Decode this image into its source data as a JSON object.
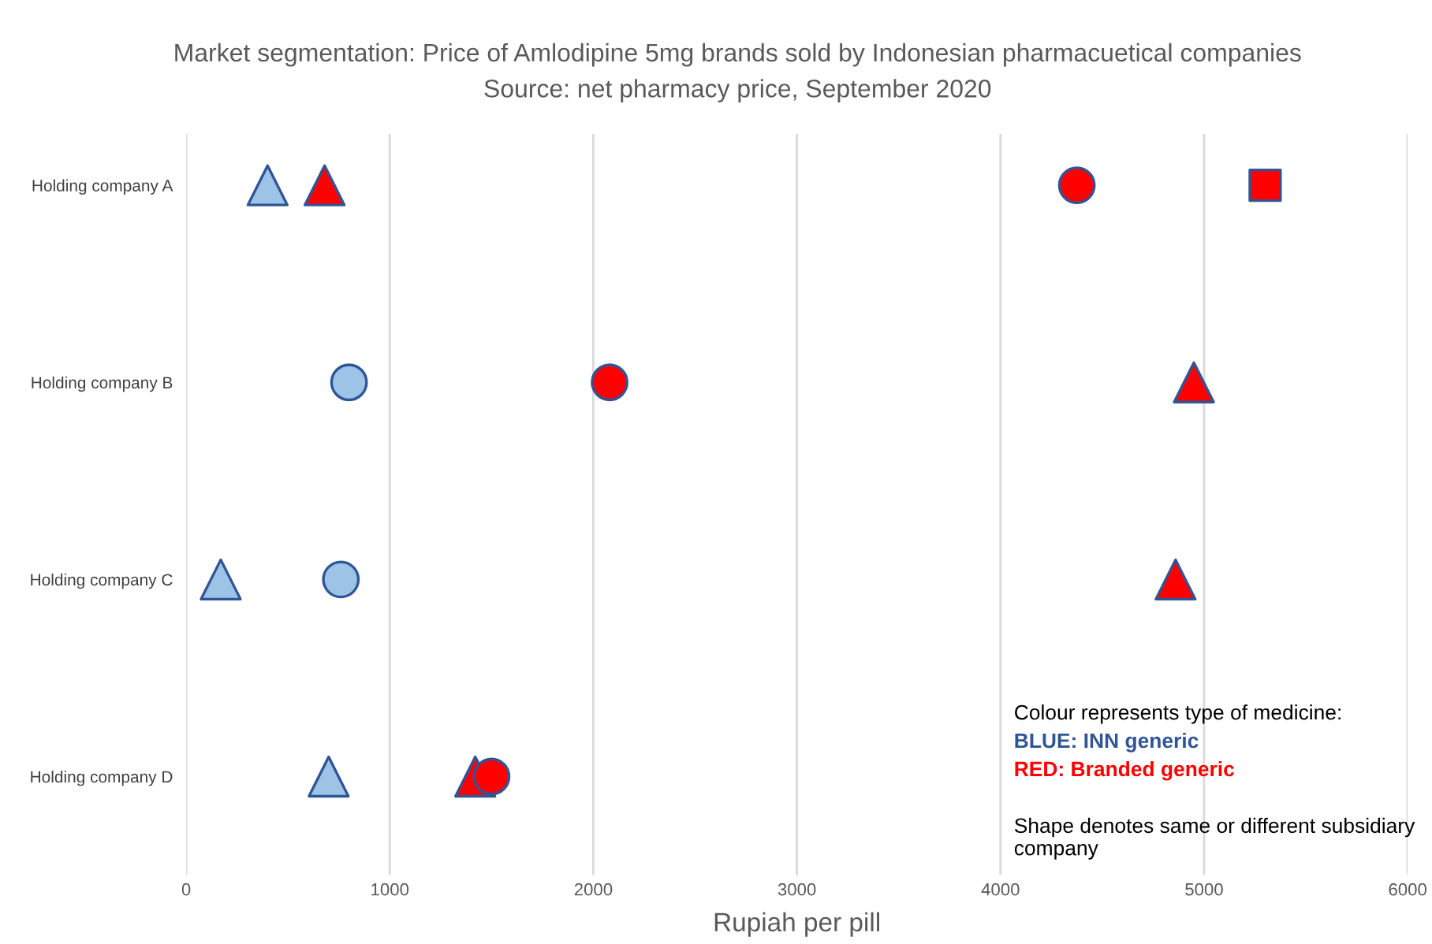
{
  "chart_data": {
    "type": "scatter",
    "orientation": "horizontal",
    "title": "Market segmentation: Price of Amlodipine 5mg brands sold by Indonesian pharmacuetical companies",
    "subtitle": "Source: net pharmacy price, September 2020",
    "xlabel": "Rupiah per pill",
    "categories": [
      "Holding company A",
      "Holding company B",
      "Holding company C",
      "Holding company D"
    ],
    "xlim": [
      0,
      6000
    ],
    "xticks": [
      0,
      1000,
      2000,
      3000,
      4000,
      5000,
      6000
    ],
    "grid": "x",
    "series": [
      {
        "color": "#9dc3e6",
        "marker": "triangle",
        "values": [
          400,
          null,
          170,
          700
        ]
      },
      {
        "color": "#9dc3e6",
        "marker": "circle",
        "values": [
          null,
          800,
          760,
          null
        ]
      },
      {
        "color": "#ff0000",
        "marker": "triangle",
        "values": [
          680,
          4950,
          4860,
          1420
        ]
      },
      {
        "color": "#ff0000",
        "marker": "circle",
        "values": [
          4375,
          2080,
          null,
          1500
        ]
      },
      {
        "color": "#ff0000",
        "marker": "square",
        "values": [
          5300,
          null,
          null,
          null
        ]
      }
    ],
    "annotations": [
      "Colour represents type of medicine:",
      "BLUE: INN generic",
      "RED: Branded generic",
      "Shape denotes same or different subsidiary company"
    ]
  }
}
